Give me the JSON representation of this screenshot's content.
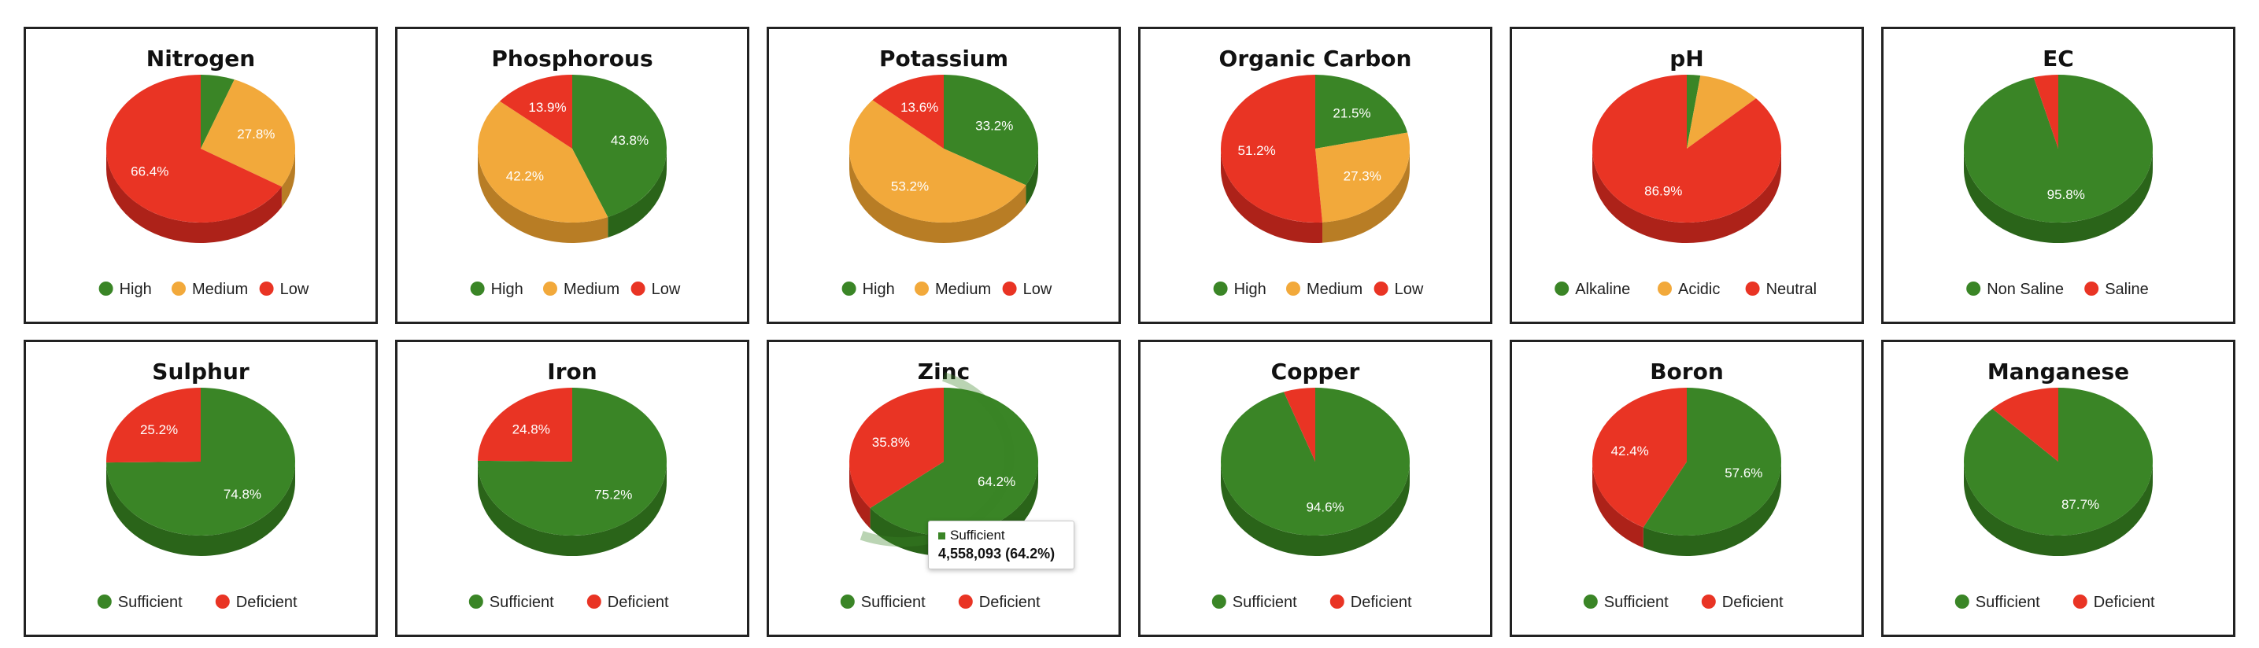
{
  "colors": {
    "green": "#3a8526",
    "orange": "#f2a93b",
    "red": "#e93424",
    "green_side": "#2a6419",
    "orange_side": "#b87d25",
    "red_side": "#ad2219"
  },
  "chart_data": [
    {
      "type": "pie",
      "title": "Nitrogen",
      "slices": [
        {
          "name": "High",
          "value": 5.8,
          "color": "green",
          "label": ""
        },
        {
          "name": "Medium",
          "value": 27.8,
          "color": "orange",
          "label": "27.8%"
        },
        {
          "name": "Low",
          "value": 66.4,
          "color": "red",
          "label": "66.4%"
        }
      ]
    },
    {
      "type": "pie",
      "title": "Phosphorous",
      "slices": [
        {
          "name": "High",
          "value": 43.8,
          "color": "green",
          "label": "43.8%"
        },
        {
          "name": "Medium",
          "value": 42.2,
          "color": "orange",
          "label": "42.2%"
        },
        {
          "name": "Low",
          "value": 13.9,
          "color": "red",
          "label": "13.9%"
        }
      ]
    },
    {
      "type": "pie",
      "title": "Potassium",
      "slices": [
        {
          "name": "High",
          "value": 33.2,
          "color": "green",
          "label": "33.2%"
        },
        {
          "name": "Medium",
          "value": 53.2,
          "color": "orange",
          "label": "53.2%"
        },
        {
          "name": "Low",
          "value": 13.6,
          "color": "red",
          "label": "13.6%"
        }
      ]
    },
    {
      "type": "pie",
      "title": "Organic Carbon",
      "slices": [
        {
          "name": "High",
          "value": 21.5,
          "color": "green",
          "label": "21.5%"
        },
        {
          "name": "Medium",
          "value": 27.3,
          "color": "orange",
          "label": "27.3%"
        },
        {
          "name": "Low",
          "value": 51.2,
          "color": "red",
          "label": "51.2%"
        }
      ]
    },
    {
      "type": "pie",
      "title": "pH",
      "slices": [
        {
          "name": "Alkaline",
          "value": 2.3,
          "color": "green",
          "label": ""
        },
        {
          "name": "Acidic",
          "value": 10.8,
          "color": "orange",
          "label": ""
        },
        {
          "name": "Neutral",
          "value": 86.9,
          "color": "red",
          "label": "86.9%"
        }
      ]
    },
    {
      "type": "pie",
      "title": "EC",
      "slices": [
        {
          "name": "Non Saline",
          "value": 95.8,
          "color": "green",
          "label": "95.8%"
        },
        {
          "name": "Saline",
          "value": 4.2,
          "color": "red",
          "label": ""
        }
      ]
    },
    {
      "type": "pie",
      "title": "Sulphur",
      "slices": [
        {
          "name": "Sufficient",
          "value": 74.8,
          "color": "green",
          "label": "74.8%"
        },
        {
          "name": "Deficient",
          "value": 25.2,
          "color": "red",
          "label": "25.2%"
        }
      ]
    },
    {
      "type": "pie",
      "title": "Iron",
      "slices": [
        {
          "name": "Sufficient",
          "value": 75.2,
          "color": "green",
          "label": "75.2%"
        },
        {
          "name": "Deficient",
          "value": 24.8,
          "color": "red",
          "label": "24.8%"
        }
      ]
    },
    {
      "type": "pie",
      "title": "Zinc",
      "slices": [
        {
          "name": "Sufficient",
          "value": 64.2,
          "color": "green",
          "label": "64.2%"
        },
        {
          "name": "Deficient",
          "value": 35.8,
          "color": "red",
          "label": "35.8%"
        }
      ],
      "tooltip": {
        "name": "Sufficient",
        "value": "4,558,093 (64.2%)"
      }
    },
    {
      "type": "pie",
      "title": "Copper",
      "slices": [
        {
          "name": "Sufficient",
          "value": 94.6,
          "color": "green",
          "label": "94.6%"
        },
        {
          "name": "Deficient",
          "value": 5.4,
          "color": "red",
          "label": ""
        }
      ]
    },
    {
      "type": "pie",
      "title": "Boron",
      "slices": [
        {
          "name": "Sufficient",
          "value": 57.6,
          "color": "green",
          "label": "57.6%"
        },
        {
          "name": "Deficient",
          "value": 42.4,
          "color": "red",
          "label": "42.4%"
        }
      ]
    },
    {
      "type": "pie",
      "title": "Manganese",
      "slices": [
        {
          "name": "Sufficient",
          "value": 87.7,
          "color": "green",
          "label": "87.7%"
        },
        {
          "name": "Deficient",
          "value": 12.3,
          "color": "red",
          "label": ""
        }
      ]
    }
  ]
}
